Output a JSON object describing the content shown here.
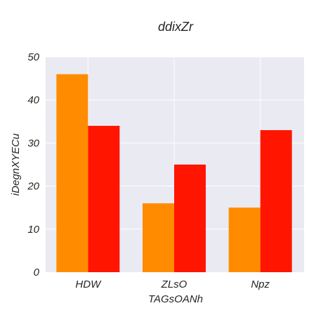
{
  "chart_data": {
    "type": "bar",
    "title": "ddixZr",
    "xlabel": "TAGsOANh",
    "ylabel": "iDegnXYECu",
    "categories": [
      "HDW",
      "ZLsO",
      "Npz"
    ],
    "series": [
      {
        "values": [
          46,
          16,
          15
        ],
        "color": "#ff8c00"
      },
      {
        "values": [
          34,
          25,
          33
        ],
        "color": "#ff1500"
      }
    ],
    "ylim": [
      0,
      50
    ],
    "yticks": [
      0,
      10,
      20,
      30,
      40,
      50
    ],
    "grid": true,
    "background": "#eaeaf2"
  }
}
